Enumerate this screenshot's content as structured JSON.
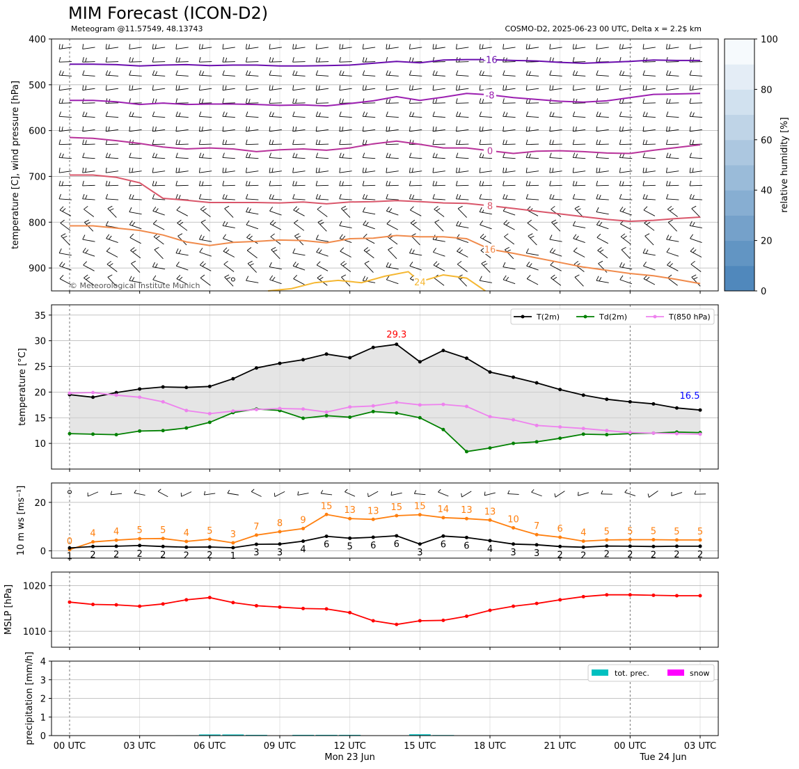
{
  "header": {
    "title": "MIM Forecast (ICON-D2)",
    "subtitle_left": "Meteogram @11.57549, 48.13743",
    "subtitle_right": "COSMO-D2, 2025-06-23 00 UTC, Delta x = 2.2$ km",
    "copyright": "© Meteorological Institute Munich"
  },
  "x_axis": {
    "ticks": [
      "00 UTC",
      "03 UTC",
      "06 UTC",
      "09 UTC",
      "12 UTC",
      "15 UTC",
      "18 UTC",
      "21 UTC",
      "00 UTC",
      "03 UTC"
    ],
    "tick_hours": [
      0,
      3,
      6,
      9,
      12,
      15,
      18,
      21,
      24,
      27
    ],
    "day_labels": [
      {
        "hour": 12,
        "text": "Mon 23 Jun"
      },
      {
        "hour": 24,
        "text": "Tue 24 Jun"
      }
    ]
  },
  "colors": {
    "t2m": "#000000",
    "td2m": "#008000",
    "t850": "#ee82ee",
    "ws": "#ff7f0e",
    "mslp": "#ff0000",
    "precip": "#00c0c0",
    "snow": "#ff00ff",
    "max_label": "#ff0000",
    "last_label": "#0000ff"
  },
  "chart_data": [
    {
      "type": "heatmap",
      "panel": "upper-air",
      "ylabel": "temperature [C], wind pressure [hPa]",
      "ylim": [
        950,
        400
      ],
      "yticks": [
        400,
        500,
        600,
        700,
        800,
        900
      ],
      "colorbar": {
        "label": "relative humidity [%]",
        "ticks": [
          0,
          20,
          40,
          60,
          80,
          100
        ]
      },
      "isotherms": [
        {
          "label": "-16",
          "color": "#6a0dad",
          "hours": [
            0,
            1,
            2,
            3,
            4,
            5,
            6,
            7,
            8,
            9,
            10,
            11,
            12,
            13,
            14,
            15,
            16,
            17,
            18,
            19,
            20,
            21,
            22,
            23,
            24,
            25,
            26,
            27
          ],
          "p": [
            455,
            455,
            456,
            459,
            457,
            456,
            458,
            457,
            457,
            459,
            459,
            458,
            457,
            453,
            449,
            452,
            446,
            445,
            445,
            447,
            448,
            451,
            453,
            451,
            449,
            446,
            447,
            447
          ]
        },
        {
          "label": "-8",
          "color": "#9b1fb0",
          "hours": [
            0,
            1,
            2,
            3,
            4,
            5,
            6,
            7,
            8,
            9,
            10,
            11,
            12,
            13,
            14,
            15,
            16,
            17,
            18,
            19,
            20,
            21,
            22,
            23,
            24,
            25,
            26,
            27
          ],
          "p": [
            534,
            534,
            537,
            543,
            540,
            543,
            542,
            542,
            543,
            545,
            544,
            546,
            541,
            535,
            526,
            534,
            527,
            519,
            522,
            528,
            532,
            536,
            538,
            535,
            528,
            521,
            520,
            519
          ]
        },
        {
          "label": "0",
          "color": "#b8329a",
          "hours": [
            0,
            1,
            2,
            3,
            4,
            5,
            6,
            7,
            8,
            9,
            10,
            11,
            12,
            13,
            14,
            15,
            16,
            17,
            18,
            19,
            20,
            21,
            22,
            23,
            24,
            25,
            26,
            27
          ],
          "p": [
            615,
            617,
            622,
            628,
            636,
            640,
            638,
            640,
            646,
            642,
            640,
            643,
            638,
            629,
            623,
            630,
            638,
            638,
            644,
            650,
            645,
            644,
            646,
            649,
            650,
            643,
            637,
            631
          ]
        },
        {
          "label": "8",
          "color": "#d9566a",
          "hours": [
            0,
            1,
            2,
            3,
            4,
            5,
            6,
            7,
            8,
            9,
            10,
            11,
            12,
            13,
            14,
            15,
            16,
            17,
            18,
            19,
            20,
            21,
            22,
            23,
            24,
            25,
            26,
            27
          ],
          "p": [
            697,
            697,
            702,
            714,
            748,
            752,
            757,
            757,
            757,
            758,
            756,
            760,
            756,
            755,
            753,
            755,
            758,
            759,
            764,
            770,
            776,
            782,
            788,
            794,
            798,
            796,
            792,
            789
          ]
        },
        {
          "label": "16",
          "color": "#f08a4b",
          "hours": [
            0,
            1,
            2,
            3,
            4,
            5,
            6,
            7,
            8,
            9,
            10,
            11,
            12,
            13,
            14,
            15,
            16,
            17,
            18,
            19,
            20,
            21,
            22,
            23,
            24,
            25,
            26,
            27
          ],
          "p": [
            808,
            808,
            813,
            818,
            828,
            843,
            851,
            844,
            842,
            839,
            840,
            845,
            836,
            835,
            829,
            832,
            832,
            836,
            859,
            868,
            878,
            888,
            898,
            905,
            912,
            917,
            925,
            934
          ]
        },
        {
          "label": "24",
          "color": "#f5b731",
          "hours": [
            8.5,
            9.5,
            10.5,
            11.5,
            12.5,
            13.5,
            14.5,
            15,
            16,
            17,
            17.8
          ],
          "p": [
            950,
            945,
            932,
            927,
            932,
            918,
            908,
            930,
            915,
            922,
            950
          ]
        }
      ]
    },
    {
      "type": "line",
      "panel": "temperature",
      "ylabel": "temperature [$^\\circ$C]",
      "ylim": [
        5,
        37
      ],
      "yticks": [
        10,
        15,
        20,
        25,
        30,
        35
      ],
      "x": [
        0,
        1,
        2,
        3,
        4,
        5,
        6,
        7,
        8,
        9,
        10,
        11,
        12,
        13,
        14,
        15,
        16,
        17,
        18,
        19,
        20,
        21,
        22,
        23,
        24,
        25,
        26,
        27
      ],
      "series": [
        {
          "name": "T(2m)",
          "values": [
            19.5,
            19.0,
            19.9,
            20.6,
            21.0,
            20.9,
            21.1,
            22.6,
            24.7,
            25.6,
            26.3,
            27.4,
            26.7,
            28.7,
            29.3,
            25.9,
            28.1,
            26.6,
            23.9,
            22.9,
            21.8,
            20.5,
            19.4,
            18.6,
            18.1,
            17.7,
            16.9,
            16.5
          ]
        },
        {
          "name": "Td(2m)",
          "values": [
            11.9,
            11.8,
            11.7,
            12.4,
            12.5,
            13.0,
            14.1,
            16.0,
            16.7,
            16.4,
            14.9,
            15.4,
            15.1,
            16.2,
            15.9,
            15.0,
            12.7,
            8.4,
            9.1,
            10.0,
            10.3,
            11.0,
            11.8,
            11.7,
            11.9,
            12.0,
            12.2,
            12.1
          ]
        },
        {
          "name": "T(850 hPa)",
          "values": [
            19.8,
            19.9,
            19.4,
            19.0,
            18.1,
            16.4,
            15.8,
            16.3,
            16.6,
            16.8,
            16.7,
            16.1,
            17.1,
            17.3,
            18.0,
            17.5,
            17.6,
            17.2,
            15.2,
            14.6,
            13.5,
            13.2,
            12.9,
            12.5,
            12.1,
            12.0,
            11.9,
            11.8
          ]
        }
      ],
      "annotations": [
        {
          "x": 14,
          "y": 29.3,
          "text": "29.3"
        },
        {
          "x": 27,
          "y": 16.5,
          "text": "16.5"
        }
      ],
      "legend": "top-right"
    },
    {
      "type": "line",
      "panel": "wind",
      "ylabel": "10 m ws [ms$^{-1}$]",
      "ylim": [
        -3,
        28
      ],
      "yticks": [
        0,
        20
      ],
      "x": [
        0,
        1,
        2,
        3,
        4,
        5,
        6,
        7,
        8,
        9,
        10,
        11,
        12,
        13,
        14,
        15,
        16,
        17,
        18,
        19,
        20,
        21,
        22,
        23,
        24,
        25,
        26,
        27
      ],
      "series": [
        {
          "values": [
            0.5,
            3.7,
            4.4,
            5.0,
            5.1,
            3.9,
            4.8,
            3.3,
            6.5,
            7.9,
            9.2,
            15.0,
            13.3,
            13.0,
            14.5,
            14.9,
            13.7,
            13.3,
            12.7,
            9.5,
            6.7,
            5.6,
            4.0,
            4.5,
            4.6,
            4.6,
            4.5,
            4.5
          ]
        },
        {
          "values": [
            1.2,
            1.8,
            1.9,
            2.2,
            1.8,
            1.5,
            1.6,
            1.3,
            2.7,
            2.8,
            4.0,
            6.0,
            5.2,
            5.6,
            6.2,
            2.8,
            6.1,
            5.5,
            4.2,
            2.8,
            2.5,
            1.8,
            1.5,
            2.0,
            1.9,
            1.8,
            1.9,
            1.9
          ]
        }
      ],
      "wind_labels": [
        "0",
        "4",
        "4",
        "5",
        "5",
        "4",
        "5",
        "3",
        "7",
        "8",
        "9",
        "15",
        "13",
        "13",
        "15",
        "15",
        "14",
        "13",
        "13",
        "10",
        "7",
        "6",
        "4",
        "5",
        "5",
        "5",
        "5",
        "5"
      ],
      "ws_labels": [
        "1",
        "2",
        "2",
        "2",
        "2",
        "2",
        "2",
        "1",
        "3",
        "3",
        "4",
        "6",
        "5",
        "6",
        "6",
        "3",
        "6",
        "6",
        "4",
        "3",
        "3",
        "2",
        "2",
        "2",
        "2",
        "2",
        "2",
        "2"
      ]
    },
    {
      "type": "line",
      "panel": "mslp",
      "ylabel": "MSLP [hPa]",
      "ylim": [
        1006.5,
        1023
      ],
      "yticks": [
        1010,
        1020
      ],
      "x": [
        0,
        1,
        2,
        3,
        4,
        5,
        6,
        7,
        8,
        9,
        10,
        11,
        12,
        13,
        14,
        15,
        16,
        17,
        18,
        19,
        20,
        21,
        22,
        23,
        24,
        25,
        26,
        27
      ],
      "series": [
        {
          "values": [
            1016.4,
            1015.9,
            1015.8,
            1015.5,
            1016.0,
            1016.9,
            1017.4,
            1016.3,
            1015.6,
            1015.3,
            1015.0,
            1014.9,
            1014.1,
            1012.3,
            1011.5,
            1012.3,
            1012.4,
            1013.3,
            1014.6,
            1015.5,
            1016.1,
            1016.9,
            1017.6,
            1018.0,
            1018.0,
            1017.9,
            1017.8,
            1017.8
          ]
        }
      ]
    },
    {
      "type": "bar",
      "panel": "precipitation",
      "ylabel": "precipitation [mm/h]",
      "ylim": [
        0,
        4
      ],
      "yticks": [
        0,
        1,
        2,
        3,
        4
      ],
      "series": [
        {
          "name": "tot. prec.",
          "x": [
            5,
            6,
            7,
            8,
            10,
            11,
            12,
            15,
            16
          ],
          "values": [
            0.02,
            0.06,
            0.06,
            0.04,
            0.04,
            0.04,
            0.04,
            0.07,
            0.03
          ]
        },
        {
          "name": "snow",
          "x": [],
          "values": []
        }
      ],
      "legend": "top-right"
    }
  ]
}
